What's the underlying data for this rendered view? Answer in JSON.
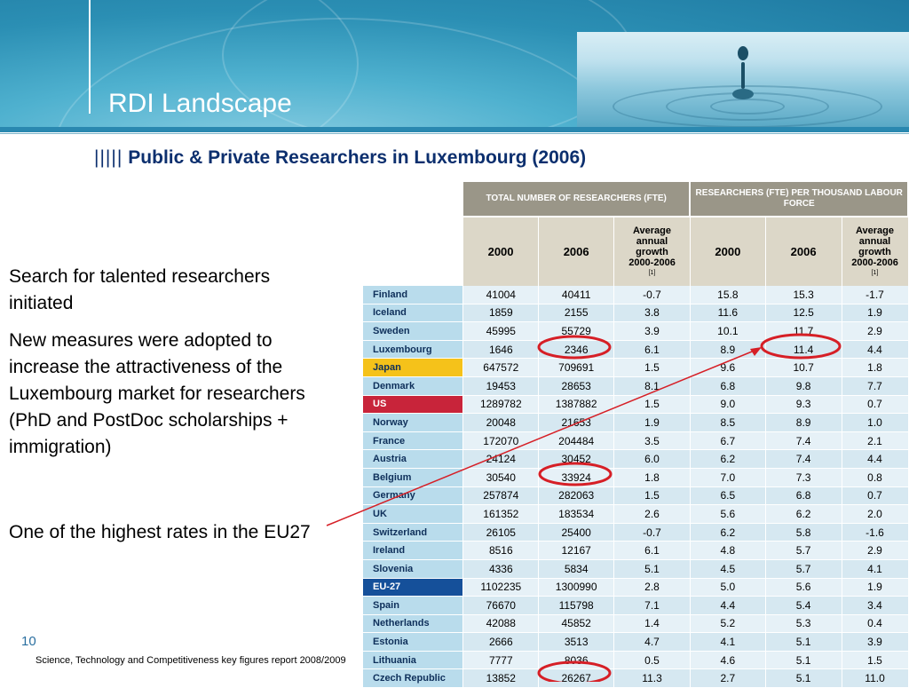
{
  "header": {
    "title": "RDI Landscape"
  },
  "subtitle": {
    "bars": "|||||",
    "text": "Public & Private  Researchers in Luxembourg (2006)"
  },
  "bullets": [
    "Search for talented researchers initiated",
    "New measures were adopted to increase the attractiveness of the Luxembourg market for researchers (PhD and PostDoc scholarships + immigration)"
  ],
  "bullet3": "One of the highest rates in the EU27",
  "page_number": "10",
  "source": "Science, Technology and Competitiveness key figures report 2008/2009",
  "table": {
    "group_headers": [
      "TOTAL NUMBER OF RESEARCHERS (FTE)",
      "RESEARCHERS (FTE) PER THOUSAND LABOUR FORCE"
    ],
    "col_headers": {
      "year1": "2000",
      "year2": "2006",
      "growth_line1": "Average",
      "growth_line2": "annual",
      "growth_line3": "growth",
      "growth_line4": "2000-2006",
      "growth_note": "[1]"
    },
    "rows": [
      {
        "country": "Finland",
        "t2000": "41004",
        "t2006": "40411",
        "tg": "-0.7",
        "p2000": "15.8",
        "p2006": "15.3",
        "pg": "-1.7"
      },
      {
        "country": "Iceland",
        "t2000": "1859",
        "t2006": "2155",
        "tg": "3.8",
        "p2000": "11.6",
        "p2006": "12.5",
        "pg": "1.9"
      },
      {
        "country": "Sweden",
        "t2000": "45995",
        "t2006": "55729",
        "tg": "3.9",
        "p2000": "10.1",
        "p2006": "11.7",
        "pg": "2.9"
      },
      {
        "country": "Luxembourg",
        "t2000": "1646",
        "t2006": "2346",
        "tg": "6.1",
        "p2000": "8.9",
        "p2006": "11.4",
        "pg": "4.4"
      },
      {
        "country": "Japan",
        "t2000": "647572",
        "t2006": "709691",
        "tg": "1.5",
        "p2000": "9.6",
        "p2006": "10.7",
        "pg": "1.8"
      },
      {
        "country": "Denmark",
        "t2000": "19453",
        "t2006": "28653",
        "tg": "8.1",
        "p2000": "6.8",
        "p2006": "9.8",
        "pg": "7.7"
      },
      {
        "country": "US",
        "t2000": "1289782",
        "t2006": "1387882",
        "tg": "1.5",
        "p2000": "9.0",
        "p2006": "9.3",
        "pg": "0.7"
      },
      {
        "country": "Norway",
        "t2000": "20048",
        "t2006": "21653",
        "tg": "1.9",
        "p2000": "8.5",
        "p2006": "8.9",
        "pg": "1.0"
      },
      {
        "country": "France",
        "t2000": "172070",
        "t2006": "204484",
        "tg": "3.5",
        "p2000": "6.7",
        "p2006": "7.4",
        "pg": "2.1"
      },
      {
        "country": "Austria",
        "t2000": "24124",
        "t2006": "30452",
        "tg": "6.0",
        "p2000": "6.2",
        "p2006": "7.4",
        "pg": "4.4"
      },
      {
        "country": "Belgium",
        "t2000": "30540",
        "t2006": "33924",
        "tg": "1.8",
        "p2000": "7.0",
        "p2006": "7.3",
        "pg": "0.8"
      },
      {
        "country": "Germany",
        "t2000": "257874",
        "t2006": "282063",
        "tg": "1.5",
        "p2000": "6.5",
        "p2006": "6.8",
        "pg": "0.7"
      },
      {
        "country": "UK",
        "t2000": "161352",
        "t2006": "183534",
        "tg": "2.6",
        "p2000": "5.6",
        "p2006": "6.2",
        "pg": "2.0"
      },
      {
        "country": "Switzerland",
        "t2000": "26105",
        "t2006": "25400",
        "tg": "-0.7",
        "p2000": "6.2",
        "p2006": "5.8",
        "pg": "-1.6"
      },
      {
        "country": "Ireland",
        "t2000": "8516",
        "t2006": "12167",
        "tg": "6.1",
        "p2000": "4.8",
        "p2006": "5.7",
        "pg": "2.9"
      },
      {
        "country": "Slovenia",
        "t2000": "4336",
        "t2006": "5834",
        "tg": "5.1",
        "p2000": "4.5",
        "p2006": "5.7",
        "pg": "4.1"
      },
      {
        "country": "EU-27",
        "t2000": "1102235",
        "t2006": "1300990",
        "tg": "2.8",
        "p2000": "5.0",
        "p2006": "5.6",
        "pg": "1.9"
      },
      {
        "country": "Spain",
        "t2000": "76670",
        "t2006": "115798",
        "tg": "7.1",
        "p2000": "4.4",
        "p2006": "5.4",
        "pg": "3.4"
      },
      {
        "country": "Netherlands",
        "t2000": "42088",
        "t2006": "45852",
        "tg": "1.4",
        "p2000": "5.2",
        "p2006": "5.3",
        "pg": "0.4"
      },
      {
        "country": "Estonia",
        "t2000": "2666",
        "t2006": "3513",
        "tg": "4.7",
        "p2000": "4.1",
        "p2006": "5.1",
        "pg": "3.9"
      },
      {
        "country": "Lithuania",
        "t2000": "7777",
        "t2006": "8036",
        "tg": "0.5",
        "p2000": "4.6",
        "p2006": "5.1",
        "pg": "1.5"
      },
      {
        "country": "Czech Republic",
        "t2000": "13852",
        "t2006": "26267",
        "tg": "11.3",
        "p2000": "2.7",
        "p2006": "5.1",
        "pg": "11.0"
      }
    ]
  },
  "colors": {
    "header_blue": "#2b8fb4",
    "subtitle_navy": "#0c2f6e",
    "japan_yellow": "#f5c21a",
    "us_red": "#c8243a",
    "eu_blue": "#15509a",
    "annotation_red": "#d61f26"
  },
  "annotations": {
    "circled_cells": [
      "Luxembourg 2346",
      "Luxembourg 11.4",
      "Belgium 33924",
      "Czech Republic 26267"
    ],
    "arrow": "from bullet 'One of the highest rates in the EU27' to Luxembourg 11.4"
  }
}
